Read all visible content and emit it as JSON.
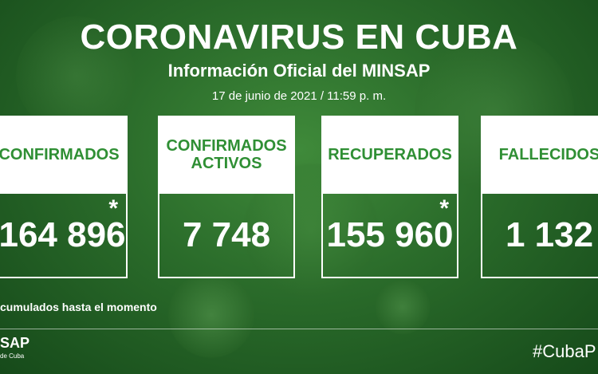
{
  "header": {
    "title": "CORONAVIRUS EN CUBA",
    "subtitle": "Información Oficial del MINSAP",
    "date": "17 de junio de 2021 / 11:59 p. m."
  },
  "cards": [
    {
      "label": "CONFIRMADOS",
      "value": "164 896",
      "asterisk": "*"
    },
    {
      "label": "CONFIRMADOS ACTIVOS",
      "value": "7 748",
      "asterisk": ""
    },
    {
      "label": "RECUPERADOS",
      "value": "155 960",
      "asterisk": "*"
    },
    {
      "label": "FALLECIDOS",
      "value": "1 132",
      "asterisk": "*"
    }
  ],
  "footer": {
    "note": "cumulados hasta el momento",
    "logo_main": "SAP",
    "logo_sub": "de Cuba",
    "hashtag": "#CubaP"
  },
  "colors": {
    "label_green": "#2f8f34",
    "background_green": "#2a6b2a"
  }
}
